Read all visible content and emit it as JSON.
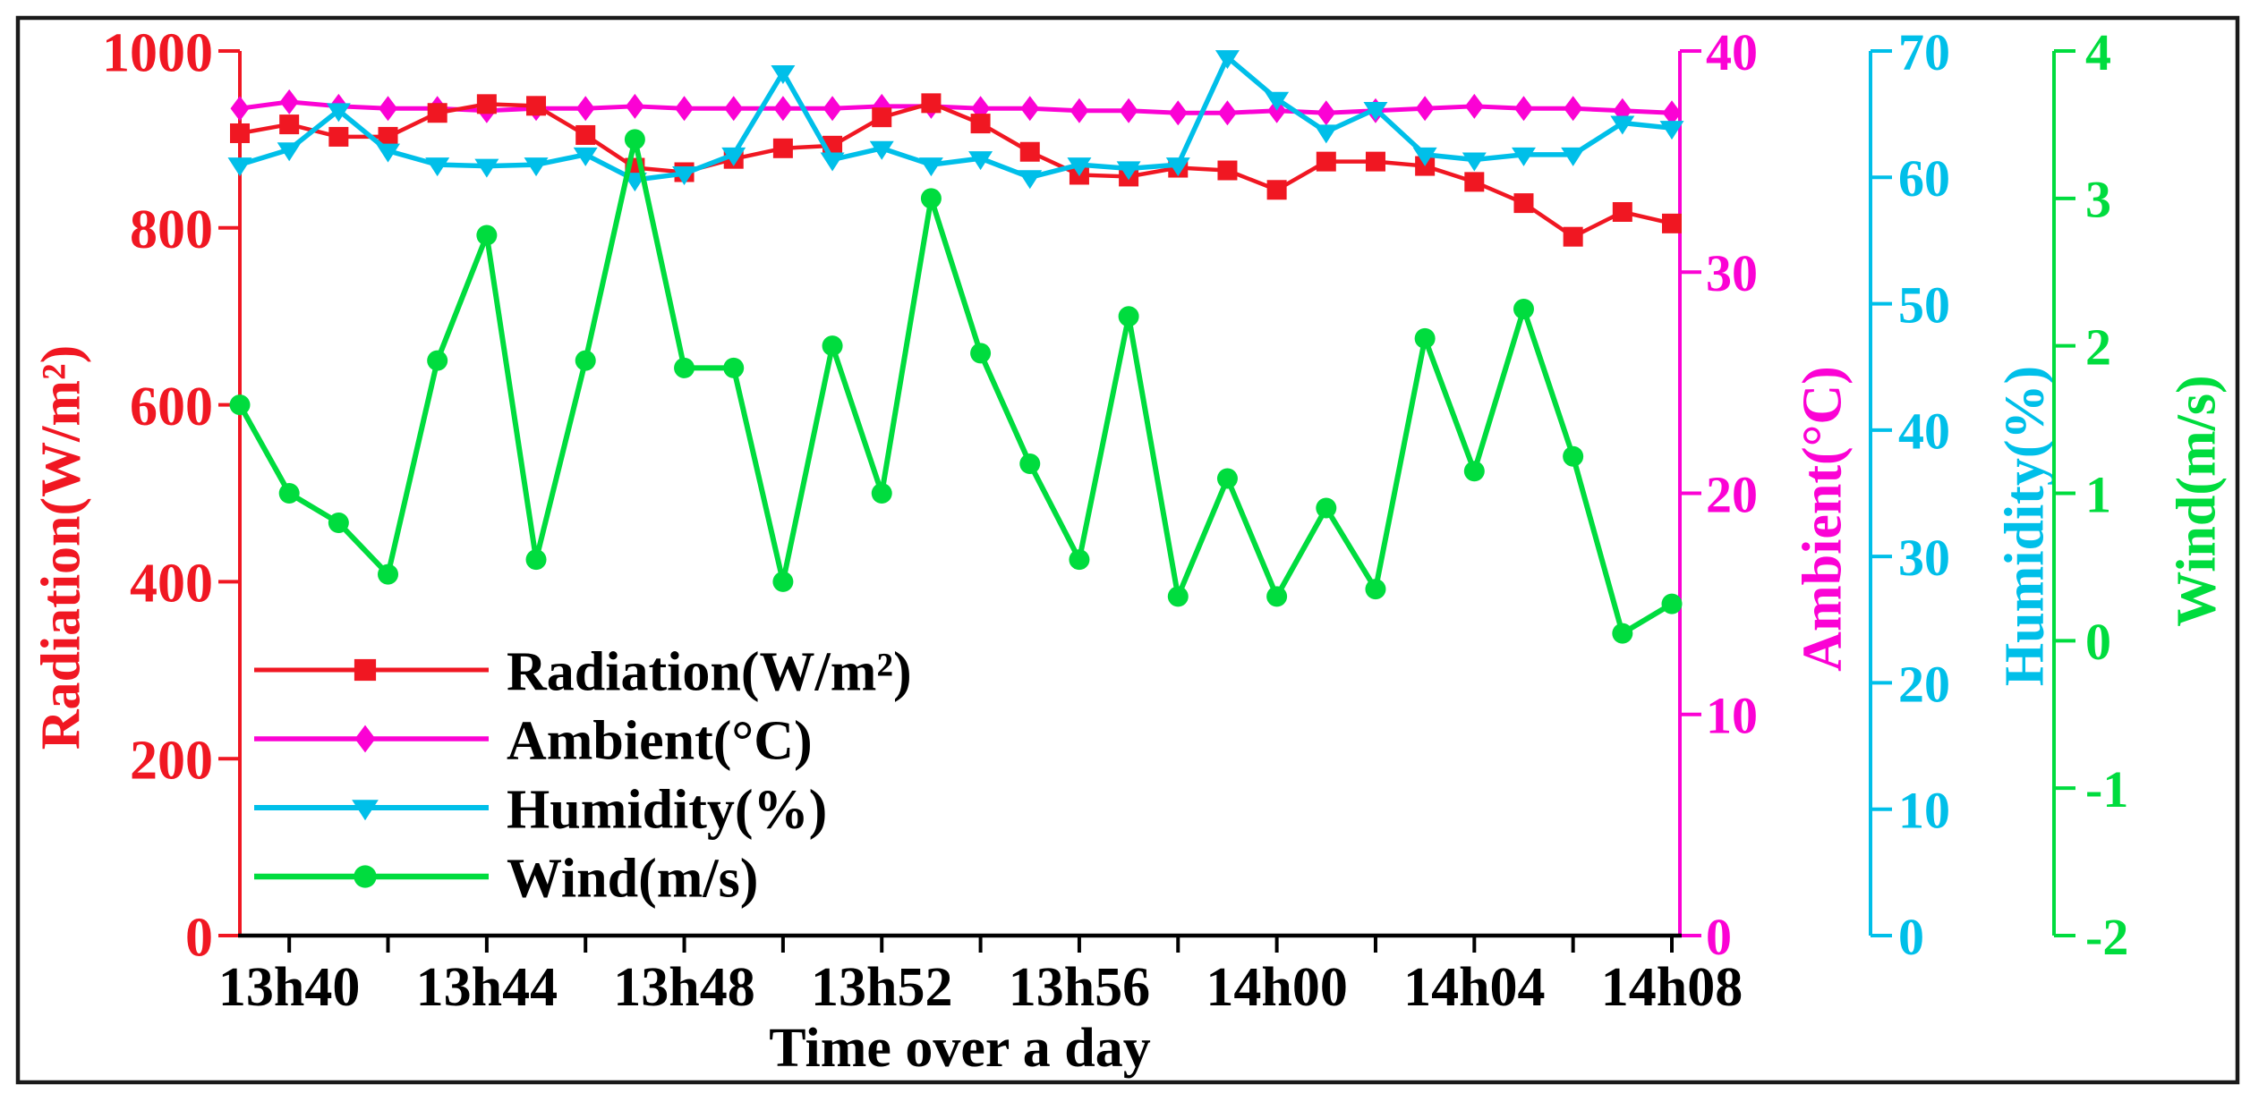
{
  "figure": {
    "background": "#ffffff",
    "border_color": "#1a1a1a"
  },
  "chart_data": {
    "type": "line",
    "title": "",
    "xlabel": "Time over a day",
    "x": [
      "13h39",
      "13h40",
      "13h41",
      "13h42",
      "13h43",
      "13h44",
      "13h45",
      "13h46",
      "13h47",
      "13h48",
      "13h49",
      "13h50",
      "13h51",
      "13h52",
      "13h53",
      "13h54",
      "13h55",
      "13h56",
      "13h57",
      "13h58",
      "13h59",
      "14h00",
      "14h01",
      "14h02",
      "14h03",
      "14h04",
      "14h05",
      "14h06",
      "14h07",
      "14h08"
    ],
    "x_tick_labels": [
      "13h40",
      "13h44",
      "13h48",
      "13h52",
      "13h56",
      "14h00",
      "14h04",
      "14h08"
    ],
    "grid": false,
    "legend_position": "lower-left",
    "axes": {
      "radiation": {
        "label": "Radiation(W/m²)",
        "color": "#f01722",
        "min": 0,
        "max": 1000,
        "ticks": [
          0,
          200,
          400,
          600,
          800,
          1000
        ],
        "side": "left"
      },
      "ambient": {
        "label": "Ambient(°C)",
        "color": "#fb02d4",
        "min": 0,
        "max": 40,
        "ticks": [
          0,
          10,
          20,
          30,
          40
        ],
        "side": "right"
      },
      "humidity": {
        "label": "Humidity(%)",
        "color": "#00bfe9",
        "min": 0,
        "max": 70,
        "ticks": [
          0,
          10,
          20,
          30,
          40,
          50,
          60,
          70
        ],
        "side": "right"
      },
      "wind": {
        "label": "Wind(m/s)",
        "color": "#00dc3e",
        "min": -2,
        "max": 4,
        "ticks": [
          -2,
          -1,
          0,
          1,
          2,
          3,
          4
        ],
        "side": "right"
      }
    },
    "series": [
      {
        "name": "Radiation(W/m²)",
        "axis": "radiation",
        "color": "#f01722",
        "marker": "square",
        "values": [
          907,
          917,
          903,
          903,
          930,
          940,
          938,
          905,
          868,
          863,
          878,
          890,
          893,
          925,
          941,
          918,
          886,
          860,
          858,
          868,
          865,
          843,
          875,
          875,
          870,
          852,
          828,
          790,
          818,
          805
        ]
      },
      {
        "name": "Ambient(°C)",
        "axis": "ambient",
        "color": "#fb02d4",
        "marker": "diamond",
        "values": [
          37.4,
          37.7,
          37.5,
          37.4,
          37.4,
          37.3,
          37.4,
          37.4,
          37.5,
          37.4,
          37.4,
          37.4,
          37.4,
          37.5,
          37.5,
          37.4,
          37.4,
          37.3,
          37.3,
          37.2,
          37.2,
          37.3,
          37.2,
          37.3,
          37.4,
          37.5,
          37.4,
          37.4,
          37.3,
          37.2
        ]
      },
      {
        "name": "Humidity(%)",
        "axis": "humidity",
        "color": "#00bfe9",
        "marker": "triangle-down",
        "values": [
          61.0,
          62.2,
          65.3,
          62.1,
          61.0,
          60.9,
          61.0,
          61.8,
          59.8,
          60.3,
          61.8,
          68.3,
          61.4,
          62.3,
          61.0,
          61.5,
          60.0,
          61.0,
          60.7,
          61.0,
          69.5,
          66.2,
          63.6,
          65.4,
          61.8,
          61.4,
          61.8,
          61.8,
          64.3,
          63.9
        ]
      },
      {
        "name": "Wind(m/s)",
        "axis": "wind",
        "color": "#00dc3e",
        "marker": "circle",
        "values": [
          1.6,
          1.0,
          0.8,
          0.45,
          1.9,
          2.75,
          0.55,
          1.9,
          3.4,
          1.85,
          1.85,
          0.4,
          2.0,
          1.0,
          3.0,
          1.95,
          1.2,
          0.55,
          2.2,
          0.3,
          1.1,
          0.3,
          0.9,
          0.35,
          2.05,
          1.15,
          2.25,
          1.25,
          0.05,
          0.25
        ]
      }
    ],
    "legend": {
      "entries": [
        "Radiation(W/m²)",
        "Ambient(°C)",
        "Humidity(%)",
        "Wind(m/s)"
      ]
    }
  }
}
